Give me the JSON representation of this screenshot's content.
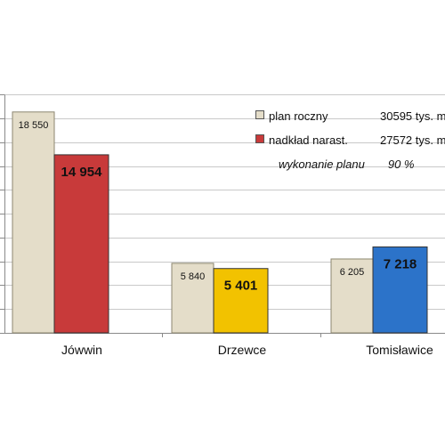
{
  "chart_data": {
    "type": "bar",
    "categories": [
      "Jówwin",
      "Drzewce",
      "Tomisławice"
    ],
    "series": [
      {
        "name": "plan roczny",
        "values": [
          18550,
          5840,
          6205
        ],
        "labels": [
          "18 550",
          "5 840",
          "6 205"
        ],
        "color": "#e4ddc9"
      },
      {
        "name": "nadkład narast.",
        "values": [
          14954,
          5401,
          7218
        ],
        "labels": [
          "14 954",
          "5 401",
          "7 218"
        ],
        "colors": [
          "#c83a3a",
          "#f2c200",
          "#2c73c9"
        ]
      }
    ],
    "ylim": [
      0,
      20000
    ],
    "grid": true,
    "legend_position": "top-right",
    "legend": [
      {
        "label": "plan roczny",
        "value": "30595 tys. m",
        "color": "#e4ddc9"
      },
      {
        "label": "nadkład narast.",
        "value": "27572 tys. m",
        "color": "#c83a3a"
      }
    ],
    "note": {
      "label": "wykonanie planu",
      "value": "90 %"
    }
  }
}
